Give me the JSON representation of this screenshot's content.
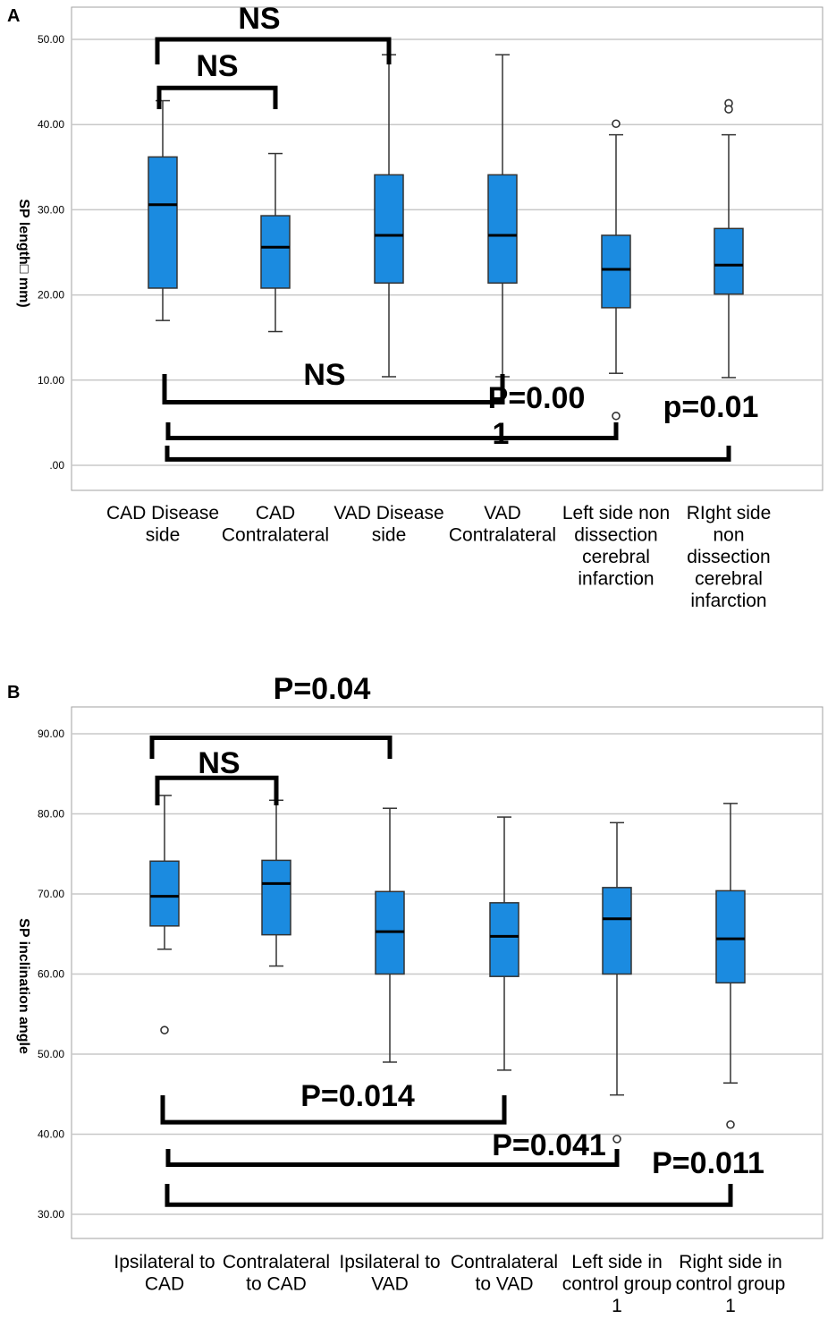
{
  "chart_data": [
    {
      "panel": "A",
      "type": "box",
      "ylabel": "SP length□ mm)",
      "ylim": [
        -2.5,
        52
      ],
      "yticks": [
        0,
        10,
        20,
        30,
        40,
        50
      ],
      "ytick_labels": [
        ".00",
        "10.00",
        "20.00",
        "30.00",
        "40.00",
        "50.00"
      ],
      "categories": [
        [
          "CAD Disease",
          "side"
        ],
        [
          "CAD",
          "Contralateral"
        ],
        [
          "VAD Disease",
          "side"
        ],
        [
          "VAD",
          "Contralateral"
        ],
        [
          "Left side non",
          "dissection",
          "cerebral",
          "infarction"
        ],
        [
          "RIght side",
          "non",
          "dissection",
          "cerebral",
          "infarction"
        ]
      ],
      "boxes": [
        {
          "min": 17.0,
          "q1": 20.8,
          "median": 30.6,
          "q3": 36.2,
          "max": 42.8,
          "outliers": []
        },
        {
          "min": 15.7,
          "q1": 20.8,
          "median": 25.6,
          "q3": 29.3,
          "max": 36.6,
          "outliers": []
        },
        {
          "min": 10.4,
          "q1": 21.4,
          "median": 27.0,
          "q3": 34.1,
          "max": 48.2,
          "outliers": []
        },
        {
          "min": 10.4,
          "q1": 21.4,
          "median": 27.0,
          "q3": 34.1,
          "max": 48.2,
          "outliers": []
        },
        {
          "min": 10.8,
          "q1": 18.5,
          "median": 23.0,
          "q3": 27.0,
          "max": 38.8,
          "outliers": [
            40.1,
            5.8
          ]
        },
        {
          "min": 10.3,
          "q1": 20.1,
          "median": 23.5,
          "q3": 27.8,
          "max": 38.8,
          "outliers": [
            42.5,
            41.8
          ]
        }
      ],
      "annotations": [
        {
          "label": "NS",
          "from": 0,
          "to": 2,
          "side": "top",
          "level": 50.0
        },
        {
          "label": "NS",
          "from": 0,
          "to": 1,
          "side": "top",
          "level": 44.3
        },
        {
          "label": "NS",
          "from": 0,
          "to": 3,
          "side": "bottom",
          "level": 7.4
        },
        {
          "label": "P=0.00\n1",
          "from": 0,
          "to": 4,
          "side": "bottom",
          "level": 3.2
        },
        {
          "label": "p=0.01",
          "from": 0,
          "to": 5,
          "side": "bottom",
          "level": 0.7
        }
      ]
    },
    {
      "panel": "B",
      "type": "box",
      "ylabel": "SP inclination angle",
      "ylim": [
        27,
        93
      ],
      "yticks": [
        30,
        40,
        50,
        60,
        70,
        80,
        90
      ],
      "ytick_labels": [
        "30.00",
        "40.00",
        "50.00",
        "60.00",
        "70.00",
        "80.00",
        "90.00"
      ],
      "categories": [
        [
          "Ipsilateral to",
          "CAD"
        ],
        [
          "Contralateral",
          "to CAD"
        ],
        [
          "Ipsilateral to",
          "VAD"
        ],
        [
          "Contralateral",
          "to VAD"
        ],
        [
          "Left side in",
          "control group",
          "1"
        ],
        [
          "Right side in",
          "control group",
          "1"
        ]
      ],
      "boxes": [
        {
          "min": 63.1,
          "q1": 66.0,
          "median": 69.7,
          "q3": 74.1,
          "max": 82.3,
          "outliers": [
            53.0
          ]
        },
        {
          "min": 61.0,
          "q1": 64.9,
          "median": 71.3,
          "q3": 74.2,
          "max": 81.7,
          "outliers": []
        },
        {
          "min": 49.0,
          "q1": 60.0,
          "median": 65.3,
          "q3": 70.3,
          "max": 80.7,
          "outliers": []
        },
        {
          "min": 48.0,
          "q1": 59.7,
          "median": 64.7,
          "q3": 68.9,
          "max": 79.6,
          "outliers": []
        },
        {
          "min": 44.9,
          "q1": 60.0,
          "median": 66.9,
          "q3": 70.8,
          "max": 78.9,
          "outliers": [
            39.4
          ]
        },
        {
          "min": 46.4,
          "q1": 58.9,
          "median": 64.4,
          "q3": 70.4,
          "max": 81.3,
          "outliers": [
            41.2
          ]
        }
      ],
      "annotations": [
        {
          "label": "P=0.04",
          "from": 0,
          "to": 2,
          "side": "top",
          "level": 89.5
        },
        {
          "label": "NS",
          "from": 0,
          "to": 1,
          "side": "top",
          "level": 84.5
        },
        {
          "label": "P=0.014",
          "from": 0,
          "to": 3,
          "side": "bottom",
          "level": 41.5
        },
        {
          "label": "P=0.041",
          "from": 0,
          "to": 4,
          "side": "bottom",
          "level": 36.2
        },
        {
          "label": "P=0.011",
          "from": 0,
          "to": 5,
          "side": "bottom",
          "level": 31.2
        }
      ]
    }
  ]
}
